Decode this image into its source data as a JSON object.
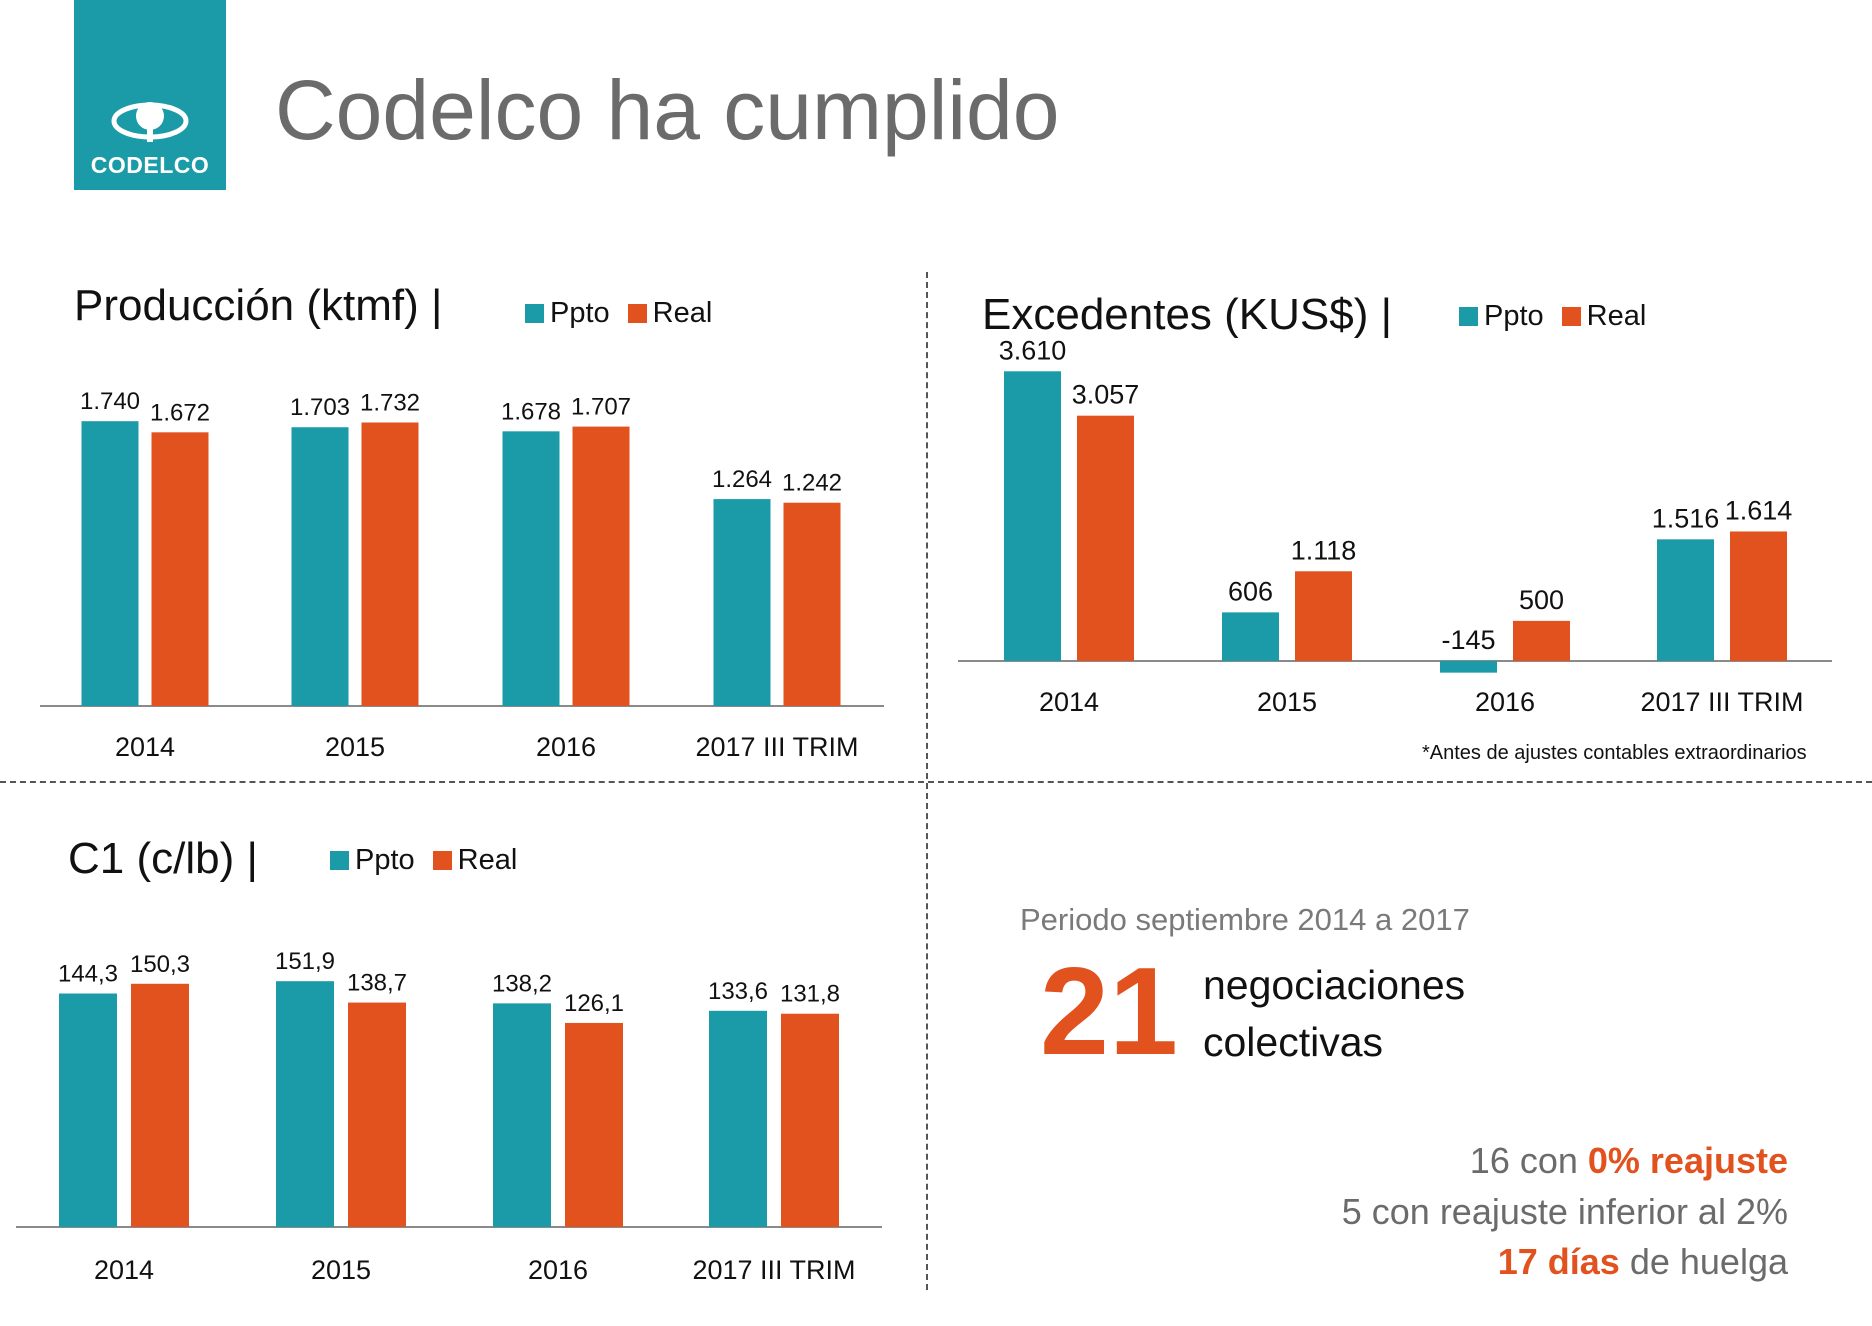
{
  "header": {
    "logo_text": "CODELCO",
    "title": "Codelco ha cumplido"
  },
  "colors": {
    "ppto": "#1a9ba7",
    "real": "#e2521f",
    "accent": "#e2521f",
    "logo_bg": "#1a9ba7"
  },
  "legend": {
    "ppto": "Ppto",
    "real": "Real"
  },
  "chart_data": [
    {
      "type": "bar",
      "title": "Producción (ktmf) |",
      "categories": [
        "2014",
        "2015",
        "2016",
        "2017  III TRIM"
      ],
      "series": [
        {
          "name": "Ppto",
          "values": [
            1740,
            1703,
            1678,
            1264
          ],
          "labels": [
            "1.740",
            "1.703",
            "1.678",
            "1.264"
          ]
        },
        {
          "name": "Real",
          "values": [
            1672,
            1732,
            1707,
            1242
          ],
          "labels": [
            "1.672",
            "1.732",
            "1.707",
            "1.242"
          ]
        }
      ],
      "ylim": [
        0,
        1900
      ],
      "grid": false,
      "legend_position": "top"
    },
    {
      "type": "bar",
      "title": "Excedentes  (KUS$) |",
      "categories": [
        "2014",
        "2015",
        "2016",
        "2017 III TRIM"
      ],
      "series": [
        {
          "name": "Ppto",
          "values": [
            3610,
            606,
            -145,
            1516
          ],
          "labels": [
            "3.610",
            "606",
            "-145",
            "1.516"
          ]
        },
        {
          "name": "Real",
          "values": [
            3057,
            1118,
            500,
            1614
          ],
          "labels": [
            "3.057",
            "1.118",
            "500",
            "1.614"
          ]
        }
      ],
      "ylim": [
        -200,
        4000
      ],
      "grid": false,
      "legend_position": "top",
      "footnote": "*Antes de ajustes contables extraordinarios"
    },
    {
      "type": "bar",
      "title": "C1 (c/lb) |",
      "categories": [
        "2014",
        "2015",
        "2016",
        "2017 III TRIM"
      ],
      "series": [
        {
          "name": "Ppto",
          "values": [
            144.3,
            151.9,
            138.2,
            133.6
          ],
          "labels": [
            "144,3",
            "151,9",
            "138,2",
            "133,6"
          ]
        },
        {
          "name": "Real",
          "values": [
            150.3,
            138.7,
            126.1,
            131.8
          ],
          "labels": [
            "150,3",
            "138,7",
            "126,1",
            "131,8"
          ]
        }
      ],
      "ylim": [
        0,
        165
      ],
      "grid": false,
      "legend_position": "top"
    }
  ],
  "negotiations": {
    "period": "Periodo septiembre 2014 a 2017",
    "count": "21",
    "label_line1": "negociaciones",
    "label_line2": "colectivas",
    "stat1_prefix": "16 con ",
    "stat1_highlight": "0% reajuste",
    "stat2": "5 con reajuste inferior al 2%",
    "stat3_highlight": "17 días",
    "stat3_suffix": " de huelga"
  }
}
